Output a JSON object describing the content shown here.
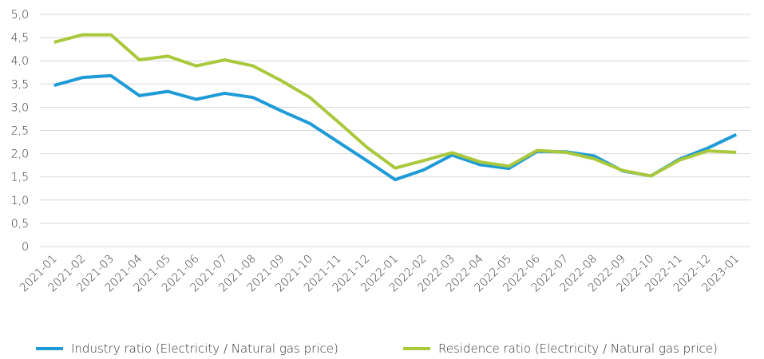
{
  "chart_data": {
    "type": "line",
    "categories": [
      "2021-01",
      "2021-02",
      "2021-03",
      "2021-04",
      "2021-05",
      "2021-06",
      "2021-07",
      "2021-08",
      "2021-09",
      "2021-10",
      "2021-11",
      "2021-12",
      "2022-01",
      "2022-02",
      "2022-03",
      "2022-04",
      "2022-05",
      "2022-06",
      "2022-07",
      "2022-08",
      "2022-09",
      "2022-10",
      "2022-11",
      "2022-12",
      "2023-01"
    ],
    "series": [
      {
        "name": "Industry ratio (Electricity / Natural gas price)",
        "color": "#1e9bd7",
        "values": [
          3.47,
          3.64,
          3.68,
          3.25,
          3.34,
          3.17,
          3.3,
          3.21,
          2.92,
          2.65,
          2.25,
          1.85,
          1.44,
          1.65,
          1.97,
          1.76,
          1.68,
          2.05,
          2.04,
          1.95,
          1.63,
          1.52,
          1.88,
          2.12,
          2.41
        ]
      },
      {
        "name": "Residence ratio (Electricity / Natural gas price)",
        "color": "#a9c83b",
        "values": [
          4.4,
          4.56,
          4.56,
          4.02,
          4.1,
          3.89,
          4.02,
          3.89,
          3.57,
          3.21,
          2.68,
          2.14,
          1.69,
          1.85,
          2.02,
          1.82,
          1.73,
          2.07,
          2.03,
          1.89,
          1.64,
          1.52,
          1.86,
          2.06,
          2.03
        ]
      }
    ],
    "ylim": [
      0,
      5
    ],
    "yticks": [
      0,
      {
        "value": 0.5,
        "label": "0,5"
      },
      {
        "value": 1,
        "label": "1,0"
      },
      {
        "value": 1.5,
        "label": "1,5"
      },
      {
        "value": 2,
        "label": "2,0"
      },
      {
        "value": 2.5,
        "label": "2,5"
      },
      {
        "value": 3,
        "label": "3,0"
      },
      {
        "value": 3.5,
        "label": "3,5"
      },
      {
        "value": 4,
        "label": "4,0"
      },
      {
        "value": 4.5,
        "label": "4,5"
      },
      {
        "value": 5,
        "label": "5,0"
      }
    ],
    "grid": true,
    "legend": "bottom"
  }
}
